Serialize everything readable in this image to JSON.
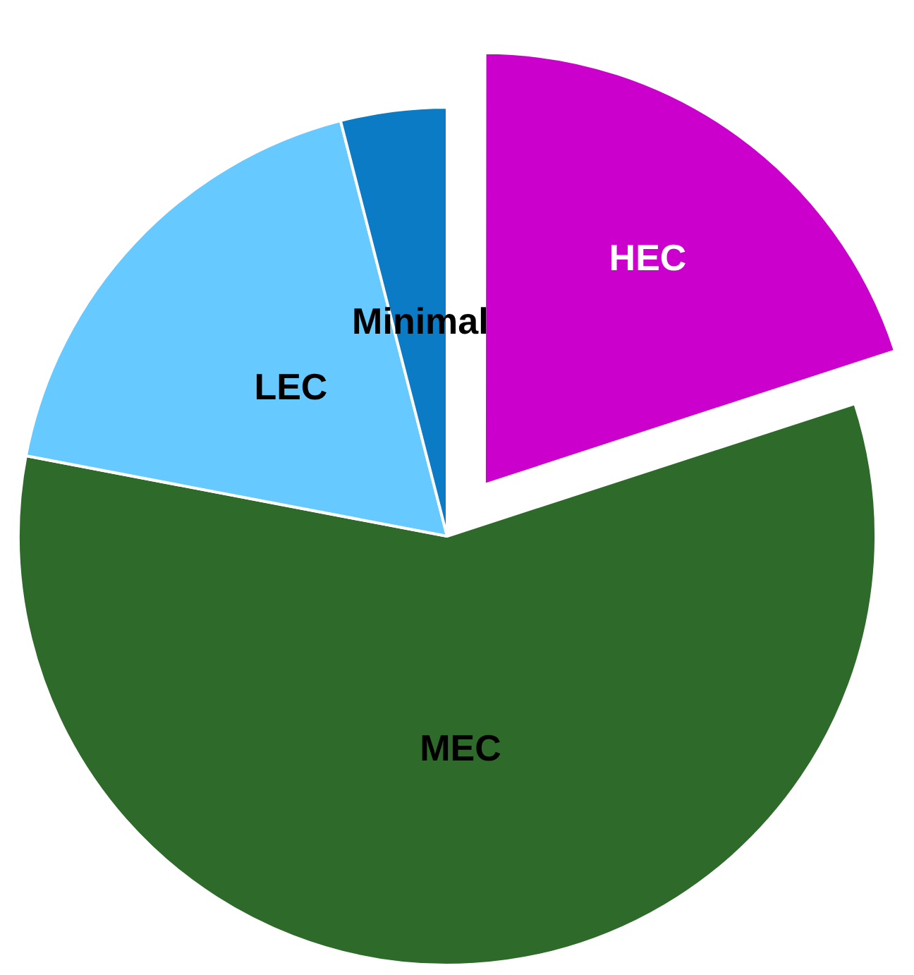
{
  "chart_data": {
    "type": "pie",
    "categories": [
      "HEC",
      "MEC",
      "LEC",
      "Minimal"
    ],
    "values": [
      20,
      58,
      18,
      4
    ],
    "colors": [
      "#cc00cc",
      "#2e6b2a",
      "#66c9ff",
      "#0a7bc4"
    ]
  }
}
